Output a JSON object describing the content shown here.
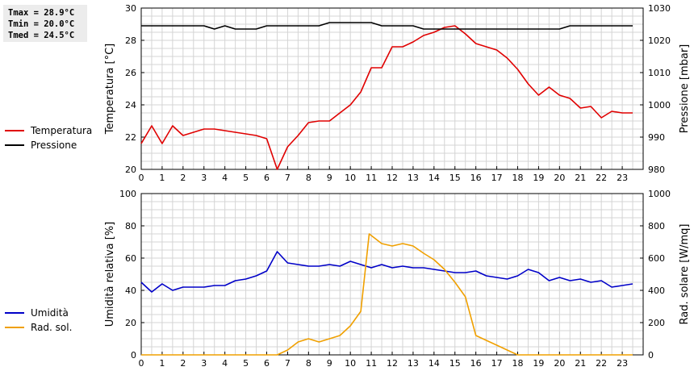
{
  "stats": {
    "tmax": "Tmax = 28.9°C",
    "tmin": "Tmin = 20.0°C",
    "tmed": "Tmed = 24.5°C"
  },
  "chart_data": [
    {
      "type": "line",
      "x_ticks": [
        "0",
        "1",
        "2",
        "3",
        "4",
        "5",
        "6",
        "7",
        "8",
        "9",
        "10",
        "11",
        "12",
        "13",
        "14",
        "15",
        "16",
        "17",
        "18",
        "19",
        "20",
        "21",
        "22",
        "23"
      ],
      "xlim": [
        0,
        24
      ],
      "grid": true,
      "legend_position": "left",
      "left_axis": {
        "label": "Temperatura [°C]",
        "range": [
          20,
          30
        ],
        "ticks": [
          "20",
          "22",
          "24",
          "26",
          "28",
          "30"
        ]
      },
      "right_axis": {
        "label": "Pressione [mbar]",
        "range": [
          980,
          1030
        ],
        "ticks": [
          "980",
          "990",
          "1000",
          "1010",
          "1020",
          "1030"
        ]
      },
      "series": [
        {
          "name": "Temperatura",
          "axis": "left",
          "color": "#e00000",
          "x": [
            0,
            0.5,
            1,
            1.5,
            2,
            2.5,
            3,
            3.5,
            4,
            4.5,
            5,
            5.5,
            6,
            6.5,
            7,
            7.5,
            8,
            8.5,
            9,
            9.5,
            10,
            10.5,
            11,
            11.5,
            12,
            12.5,
            13,
            13.5,
            14,
            14.5,
            15,
            15.5,
            16,
            16.5,
            17,
            17.5,
            18,
            18.5,
            19,
            19.5,
            20,
            20.5,
            21,
            21.5,
            22,
            22.5,
            23,
            23.5
          ],
          "y": [
            21.6,
            22.7,
            21.6,
            22.7,
            22.1,
            22.3,
            22.5,
            22.5,
            22.4,
            22.3,
            22.2,
            22.1,
            21.9,
            20.0,
            21.4,
            22.1,
            22.9,
            23.0,
            23.0,
            23.5,
            24.0,
            24.8,
            26.3,
            26.3,
            27.6,
            27.6,
            27.9,
            28.3,
            28.5,
            28.8,
            28.9,
            28.4,
            27.8,
            27.6,
            27.4,
            26.9,
            26.2,
            25.3,
            24.6,
            25.1,
            24.6,
            24.4,
            23.8,
            23.9,
            23.2,
            23.6,
            23.5,
            23.5
          ]
        },
        {
          "name": "Pressione",
          "axis": "right",
          "color": "#000000",
          "x": [
            0,
            1,
            2,
            3,
            3.5,
            4,
            4.5,
            5,
            5.5,
            6,
            7,
            8,
            8.5,
            9,
            10,
            11,
            11.5,
            12,
            13,
            13.5,
            14,
            15,
            16,
            17,
            18,
            19,
            20,
            20.5,
            21,
            22,
            23,
            23.5
          ],
          "y": [
            1024.5,
            1024.5,
            1024.5,
            1024.5,
            1023.5,
            1024.5,
            1023.5,
            1023.5,
            1023.5,
            1024.5,
            1024.5,
            1024.5,
            1024.5,
            1025.5,
            1025.5,
            1025.5,
            1024.5,
            1024.5,
            1024.5,
            1023.5,
            1023.5,
            1023.5,
            1023.5,
            1023.5,
            1023.5,
            1023.5,
            1023.5,
            1024.5,
            1024.5,
            1024.5,
            1024.5,
            1024.5
          ]
        }
      ]
    },
    {
      "type": "line",
      "x_ticks": [
        "0",
        "1",
        "2",
        "3",
        "4",
        "5",
        "6",
        "7",
        "8",
        "9",
        "10",
        "11",
        "12",
        "13",
        "14",
        "15",
        "16",
        "17",
        "18",
        "19",
        "20",
        "21",
        "22",
        "23"
      ],
      "xlim": [
        0,
        24
      ],
      "grid": true,
      "legend_position": "left",
      "left_axis": {
        "label": "Umidità relativa [%]",
        "range": [
          0,
          100
        ],
        "ticks": [
          "0",
          "20",
          "40",
          "60",
          "80",
          "100"
        ]
      },
      "right_axis": {
        "label": "Rad. solare [W/mq]",
        "range": [
          0,
          1000
        ],
        "ticks": [
          "0",
          "200",
          "400",
          "600",
          "800",
          "1000"
        ]
      },
      "series": [
        {
          "name": "Umidità",
          "axis": "left",
          "color": "#0000c8",
          "x": [
            0,
            0.5,
            1,
            1.5,
            2,
            2.5,
            3,
            3.5,
            4,
            4.5,
            5,
            5.5,
            6,
            6.5,
            7,
            7.5,
            8,
            8.5,
            9,
            9.5,
            10,
            10.5,
            11,
            11.5,
            12,
            12.5,
            13,
            13.5,
            14,
            14.5,
            15,
            15.5,
            16,
            16.5,
            17,
            17.5,
            18,
            18.5,
            19,
            19.5,
            20,
            20.5,
            21,
            21.5,
            22,
            22.5,
            23,
            23.5
          ],
          "y": [
            45,
            39,
            44,
            40,
            42,
            42,
            42,
            43,
            43,
            46,
            47,
            49,
            52,
            64,
            57,
            56,
            55,
            55,
            56,
            55,
            58,
            56,
            54,
            56,
            54,
            55,
            54,
            54,
            53,
            52,
            51,
            51,
            52,
            49,
            48,
            47,
            49,
            53,
            51,
            46,
            48,
            46,
            47,
            45,
            46,
            42,
            43,
            44
          ]
        },
        {
          "name": "Rad. sol.",
          "axis": "right",
          "color": "#f0a000",
          "x": [
            0,
            1,
            2,
            3,
            4,
            5,
            6,
            6.5,
            7,
            7.5,
            8,
            8.5,
            9,
            9.5,
            10,
            10.5,
            10.9,
            11.5,
            12,
            12.5,
            13,
            13.5,
            14,
            14.5,
            15,
            15.5,
            16,
            16.5,
            17,
            17.5,
            18,
            19,
            20,
            21,
            22,
            23,
            23.5
          ],
          "y": [
            0,
            0,
            0,
            0,
            0,
            0,
            0,
            0,
            30,
            80,
            100,
            80,
            100,
            120,
            180,
            270,
            750,
            690,
            675,
            690,
            675,
            630,
            590,
            530,
            450,
            360,
            120,
            90,
            60,
            30,
            0,
            0,
            0,
            0,
            0,
            0,
            0
          ]
        }
      ]
    }
  ]
}
